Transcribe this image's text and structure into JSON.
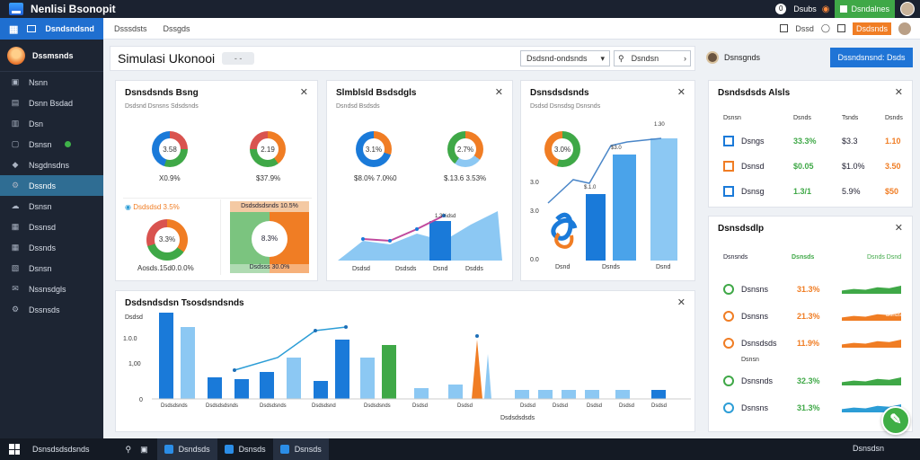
{
  "app": {
    "title": "Nenlisi Bsonopit"
  },
  "topbar": {
    "user_initial": "0",
    "user_label": "Dsubs",
    "bell_icon": "bell-icon",
    "green_button_label": "Dsndalnes"
  },
  "sidebar": {
    "header_label": "Dsndsndsnd",
    "user_name": "Dssmsnds",
    "items": [
      {
        "label": "Nsnn",
        "icon": "layers-icon"
      },
      {
        "label": "Dsnn Bsdad",
        "icon": "inbox-icon"
      },
      {
        "label": "Dsn",
        "icon": "document-icon"
      },
      {
        "label": "Dsnsn",
        "icon": "monitor-icon",
        "badge": true
      },
      {
        "label": "Nsgdnsdns",
        "icon": "tag-icon"
      },
      {
        "label": "Dssnds",
        "icon": "gear-icon",
        "active": true
      },
      {
        "label": "Dsnsn",
        "icon": "cloud-icon"
      },
      {
        "label": "Dssnsd",
        "icon": "folder-icon"
      },
      {
        "label": "Dssnds",
        "icon": "grid-icon"
      },
      {
        "label": "Dsnsn",
        "icon": "calendar-icon"
      },
      {
        "label": "Nssnsdgls",
        "icon": "mail-icon"
      },
      {
        "label": "Dssnsds",
        "icon": "gear-icon"
      }
    ]
  },
  "subbar": {
    "tabs": [
      "Dsssdsts",
      "Dssgds"
    ],
    "right_label": "Dssd",
    "orange_label": "Dsdsnds"
  },
  "title_card": {
    "title": "Simulasi Ukonooi",
    "pill": "- -",
    "select_value": "Dsdsnd-ondsnds",
    "search_placeholder": "Dsndsn"
  },
  "user_bar": {
    "name": "Dsnsgnds",
    "button_label": "Dssndsnsnd: Dsds"
  },
  "card1": {
    "title": "Dsnsdsnds Bsng",
    "subtitle": "Dsdsnd Dsnsns Sdsdsnds",
    "donut1": {
      "center": "3.58",
      "caption": "X0.9%"
    },
    "donut2": {
      "center": "2.19",
      "caption": "$37.9%"
    },
    "legend_text": "Dsdsdsd 3.5%",
    "donut3": {
      "center": "3.3%",
      "caption": "Aosds.15d0.0.0%"
    },
    "panel_label": "Dsdsdsdsnds 10.5%",
    "panel_center": "8.3%",
    "panel_caption": "Dsdsss 30.0%"
  },
  "card2": {
    "title": "Slmblsld Bsdsdgls",
    "subtitle": "Dsndsd Bsdsds",
    "donut1": {
      "center": "3.1%",
      "caption": "$8.0% 7.0%0"
    },
    "donut2": {
      "center": "2.7%",
      "caption": "$.13.6 3.53%"
    },
    "x_labels": [
      "Dsdsd",
      "Dsdsds",
      "Dsnd",
      "Dsdds"
    ],
    "peak_label": "1.3%dsd"
  },
  "card3": {
    "title": "Dsnsdsdsnds",
    "subtitle": "Dsdsd Dsnsdsg Dsnsnds",
    "donut_center": "3.0%",
    "y_labels": [
      "3.0",
      "3.0",
      "0.0"
    ],
    "bar_labels": [
      "$.1.0",
      "$3.0",
      "1.30"
    ],
    "x_labels": [
      "Dsnd",
      "Dsnds",
      "Dsnd"
    ]
  },
  "bottom_card": {
    "title": "Dsdsndsdsn Tsosdsndsnds",
    "y_labels": [
      "Dsdsd",
      "1.0.0",
      "1,00",
      "0"
    ],
    "x_labels": [
      "Dsdsdsnds",
      "Dsdsdsdsnds",
      "Dsdsdsnds",
      "Dsdsdsnd",
      "Dsdsdsnds",
      "Dsdsd",
      "Dsdsd",
      "Dsdsd",
      "Dsdsd",
      "Dsdsd",
      "Dsdsd",
      "Dsdsd"
    ],
    "axis_caption": "Dsdsdsdsds"
  },
  "right_card1": {
    "title": "Dsndsdsds Alsls",
    "headers": [
      "Dsnsn",
      "Dsnds",
      "Tsnds",
      "Dsnds"
    ],
    "rows": [
      {
        "icon": "server-icon",
        "name": "Dsngs",
        "c2": "33.3%",
        "c3": "$3.3",
        "c4": "1.10"
      },
      {
        "icon": "cloud-icon",
        "name": "Dsnsd",
        "c2": "$0.05",
        "c3": "$1.0%",
        "c4": "3.50"
      },
      {
        "icon": "database-icon",
        "name": "Dsnsg",
        "c2": "1.3/1",
        "c3": "5.9%",
        "c4": "$50"
      }
    ]
  },
  "right_card2": {
    "title": "Dsnsdsdlp",
    "headers": [
      "Dsnsnds",
      "Dsnsds",
      "Dsnds Dsnd"
    ],
    "rows": [
      {
        "icon": "leaf-icon",
        "name": "Dsnsns",
        "value": "31.3%",
        "bar_label": ""
      },
      {
        "icon": "chart-icon",
        "name": "Dsnsns",
        "value": "21.3%",
        "bar_label": "Dsnds"
      },
      {
        "icon": "bolt-icon",
        "name": "Dsnsdsds",
        "value": "11.9%",
        "bar_label": ""
      },
      {
        "icon": "check-icon",
        "name": "Dsnsnds",
        "value": "32.3%",
        "bar_label": ""
      },
      {
        "icon": "gear-icon",
        "name": "Dsnsns",
        "value": "31.3%",
        "bar_label": ""
      }
    ],
    "sub_label": "Dsnsn"
  },
  "taskbar": {
    "search_label": "Dsnsdsdsdsnds",
    "tasks": [
      "Dsndsds",
      "Dsnsds",
      "Dsnsds"
    ],
    "clock": "Dsnsdsn"
  },
  "fab_icon": "pen-icon",
  "colors": {
    "blue": "#1a7ad9",
    "light_blue": "#8cc8f3",
    "green": "#3fa847",
    "orange": "#f07d24",
    "teal": "#2c9dd6",
    "red": "#d9534f"
  }
}
